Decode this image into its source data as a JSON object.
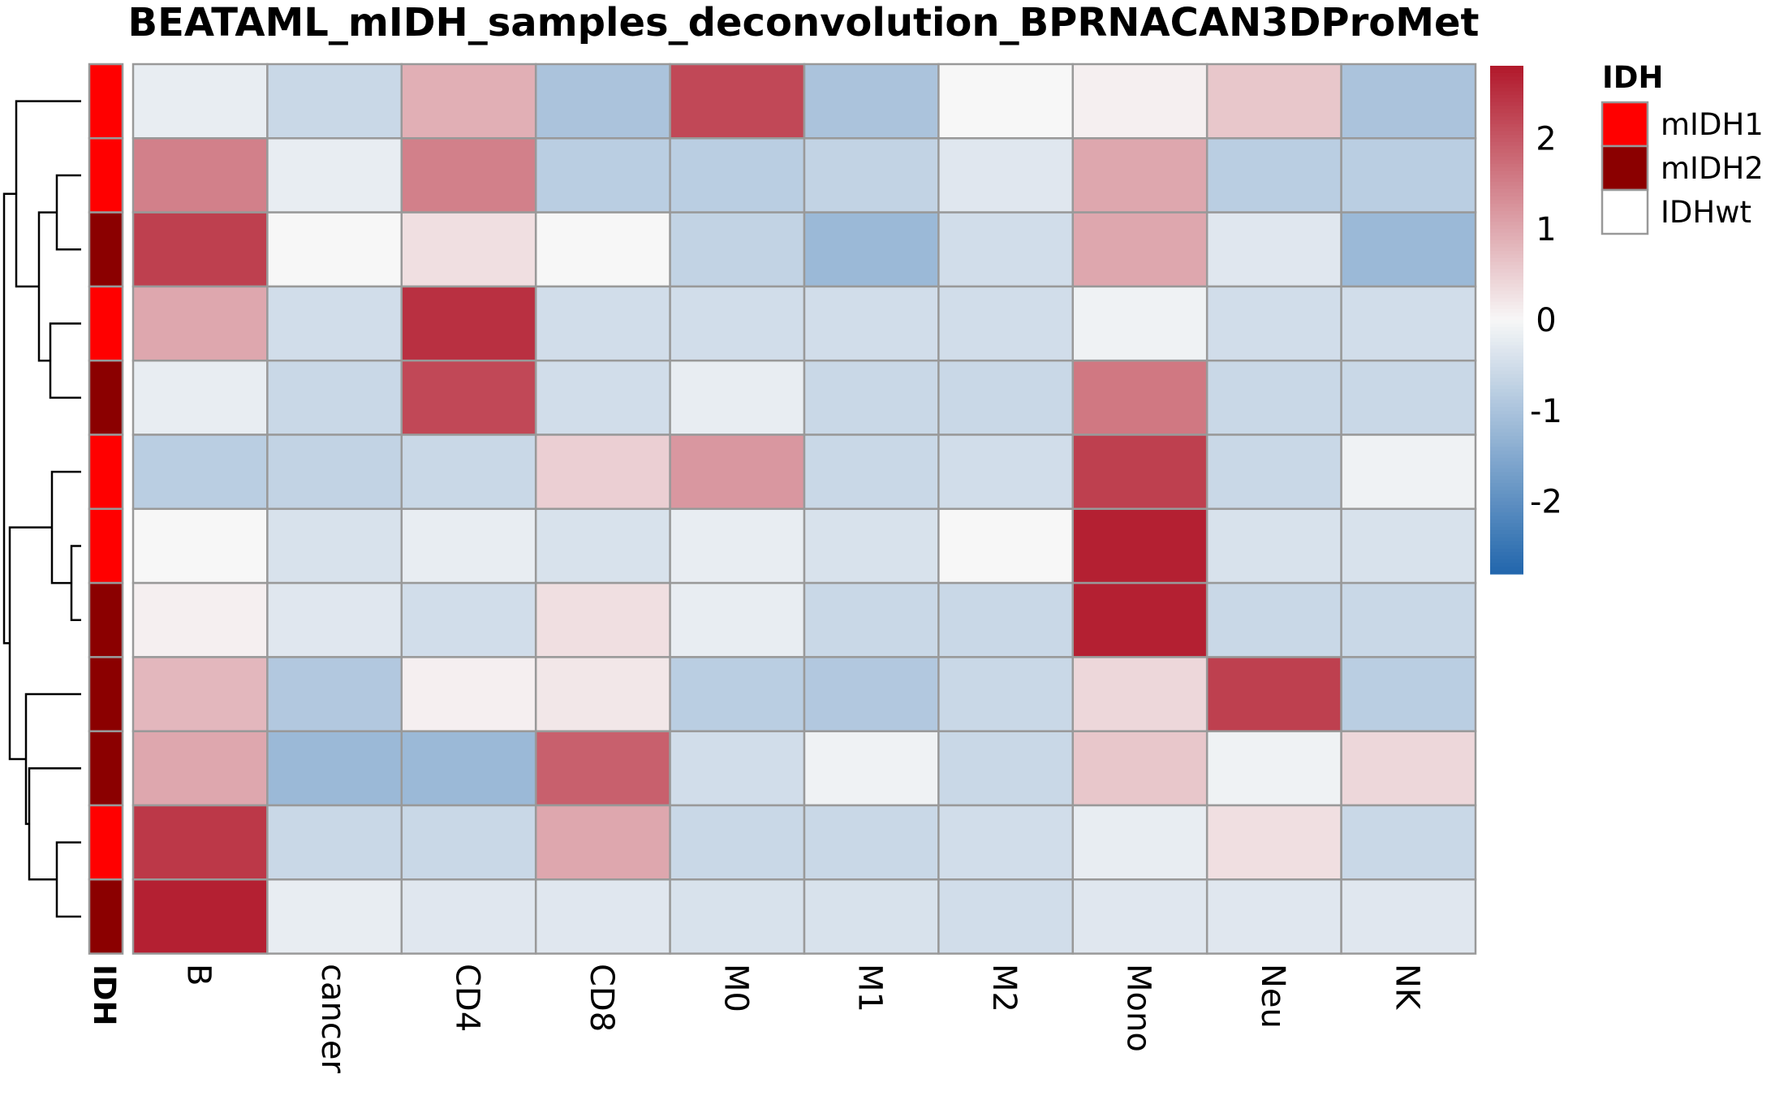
{
  "chart_data": {
    "type": "heatmap",
    "title": "BEATAML_mIDH_samples_deconvolution_BPRNACAN3DProMet",
    "columns": [
      "B",
      "cancer",
      "CD4",
      "CD8",
      "M0",
      "M1",
      "M2",
      "Mono",
      "Neu",
      "NK"
    ],
    "rows": [
      {
        "IDH": "mIDH1",
        "values": [
          -0.2,
          -0.6,
          0.9,
          -1.0,
          2.2,
          -1.0,
          0.0,
          0.1,
          0.6,
          -1.0
        ]
      },
      {
        "IDH": "mIDH1",
        "values": [
          1.5,
          -0.2,
          1.5,
          -0.8,
          -0.8,
          -0.7,
          -0.3,
          1.0,
          -0.8,
          -0.8
        ]
      },
      {
        "IDH": "mIDH2",
        "values": [
          2.3,
          0.0,
          0.3,
          0.0,
          -0.7,
          -1.2,
          -0.5,
          1.0,
          -0.3,
          -1.2
        ]
      },
      {
        "IDH": "mIDH1",
        "values": [
          1.0,
          -0.5,
          2.5,
          -0.5,
          -0.5,
          -0.5,
          -0.5,
          -0.1,
          -0.5,
          -0.5
        ]
      },
      {
        "IDH": "mIDH2",
        "values": [
          -0.2,
          -0.6,
          2.2,
          -0.5,
          -0.2,
          -0.6,
          -0.6,
          1.6,
          -0.6,
          -0.6
        ]
      },
      {
        "IDH": "mIDH1",
        "values": [
          -0.8,
          -0.7,
          -0.6,
          0.5,
          1.2,
          -0.6,
          -0.5,
          2.3,
          -0.6,
          -0.1
        ]
      },
      {
        "IDH": "mIDH1",
        "values": [
          0.0,
          -0.4,
          -0.2,
          -0.4,
          -0.2,
          -0.4,
          0.0,
          2.7,
          -0.4,
          -0.4
        ]
      },
      {
        "IDH": "mIDH2",
        "values": [
          0.1,
          -0.3,
          -0.5,
          0.3,
          -0.2,
          -0.6,
          -0.6,
          2.7,
          -0.6,
          -0.6
        ]
      },
      {
        "IDH": "mIDH2",
        "values": [
          0.8,
          -0.9,
          0.1,
          0.2,
          -0.8,
          -0.9,
          -0.6,
          0.4,
          2.3,
          -0.8
        ]
      },
      {
        "IDH": "mIDH2",
        "values": [
          1.0,
          -1.2,
          -1.2,
          1.9,
          -0.5,
          -0.1,
          -0.6,
          0.6,
          -0.1,
          0.4
        ]
      },
      {
        "IDH": "mIDH1",
        "values": [
          2.4,
          -0.6,
          -0.6,
          1.0,
          -0.6,
          -0.6,
          -0.5,
          -0.2,
          0.3,
          -0.6
        ]
      },
      {
        "IDH": "mIDH2",
        "values": [
          2.7,
          -0.2,
          -0.3,
          -0.3,
          -0.4,
          -0.4,
          -0.5,
          -0.3,
          -0.3,
          -0.3
        ]
      }
    ],
    "annotation_label": "IDH",
    "scale_ticks": [
      "2",
      "1",
      "0",
      "-1",
      "-2"
    ],
    "scale_range": [
      -2.8,
      2.8
    ],
    "legend": {
      "title": "IDH",
      "entries": [
        {
          "label": "mIDH1",
          "color": "#FF0000"
        },
        {
          "label": "mIDH2",
          "color": "#8B0000"
        },
        {
          "label": "IDHwt",
          "color": "#FFFFFF"
        }
      ]
    },
    "dendrogram": "hierarchical clustering of rows",
    "colors": {
      "low": "#2166AC",
      "mid": "#F7F7F7",
      "high": "#B2182B",
      "border": "#999999"
    }
  }
}
